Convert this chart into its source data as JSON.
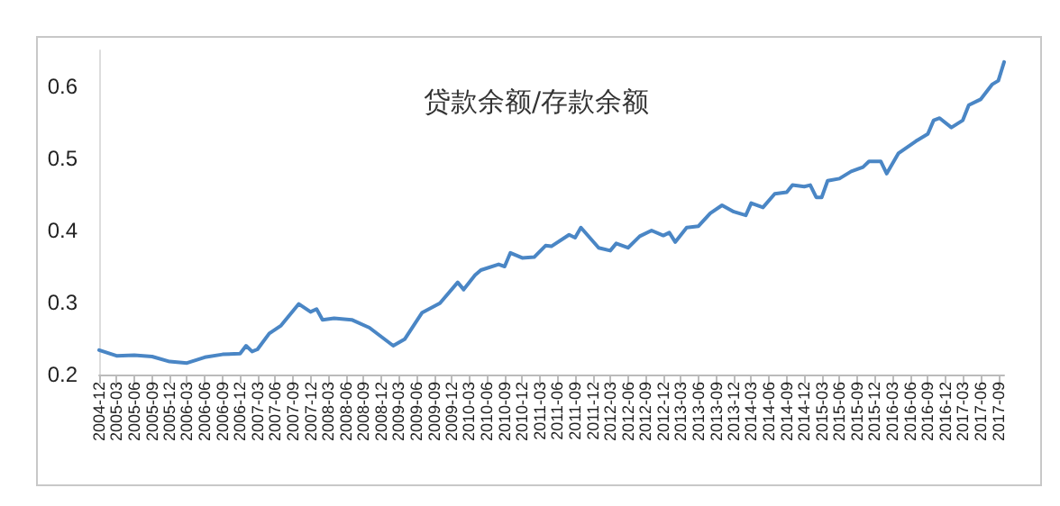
{
  "chart_data": {
    "type": "line",
    "title": "贷款余额/存款余额",
    "x": [
      "2004-12",
      "2005-03",
      "2005-06",
      "2005-09",
      "2005-12",
      "2006-03",
      "2006-06",
      "2006-09",
      "2006-12",
      "2007-01",
      "2007-02",
      "2007-03",
      "2007-05",
      "2007-07",
      "2007-10",
      "2007-12",
      "2008-01",
      "2008-02",
      "2008-04",
      "2008-07",
      "2008-10",
      "2009-02",
      "2009-04",
      "2009-07",
      "2009-10",
      "2010-01",
      "2010-02",
      "2010-04",
      "2010-05",
      "2010-08",
      "2010-09",
      "2010-10",
      "2010-12",
      "2011-02",
      "2011-04",
      "2011-05",
      "2011-08",
      "2011-09",
      "2011-10",
      "2012-01",
      "2012-03",
      "2012-04",
      "2012-06",
      "2012-08",
      "2012-10",
      "2012-12",
      "2013-01",
      "2013-02",
      "2013-04",
      "2013-06",
      "2013-08",
      "2013-10",
      "2013-12",
      "2014-02",
      "2014-03",
      "2014-05",
      "2014-07",
      "2014-09",
      "2014-10",
      "2014-12",
      "2015-01",
      "2015-02",
      "2015-03",
      "2015-04",
      "2015-06",
      "2015-08",
      "2015-10",
      "2015-11",
      "2016-01",
      "2016-02",
      "2016-04",
      "2016-07",
      "2016-09",
      "2016-10",
      "2016-11",
      "2017-01",
      "2017-03",
      "2017-04",
      "2017-06",
      "2017-08",
      "2017-09",
      "2017-10"
    ],
    "series": [
      {
        "color": "#4a86c5",
        "values": [
          0.234,
          0.226,
          0.227,
          0.225,
          0.218,
          0.216,
          0.224,
          0.228,
          0.229,
          0.24,
          0.232,
          0.235,
          0.257,
          0.268,
          0.298,
          0.287,
          0.291,
          0.276,
          0.278,
          0.276,
          0.265,
          0.24,
          0.249,
          0.286,
          0.299,
          0.328,
          0.318,
          0.338,
          0.345,
          0.353,
          0.35,
          0.369,
          0.362,
          0.363,
          0.379,
          0.378,
          0.394,
          0.39,
          0.404,
          0.376,
          0.372,
          0.382,
          0.376,
          0.392,
          0.4,
          0.393,
          0.397,
          0.384,
          0.404,
          0.406,
          0.424,
          0.435,
          0.426,
          0.421,
          0.438,
          0.432,
          0.451,
          0.453,
          0.463,
          0.461,
          0.463,
          0.446,
          0.446,
          0.469,
          0.472,
          0.482,
          0.488,
          0.496,
          0.496,
          0.479,
          0.507,
          0.524,
          0.534,
          0.553,
          0.556,
          0.543,
          0.553,
          0.574,
          0.582,
          0.603,
          0.608,
          0.634
        ]
      }
    ],
    "xlim": [
      "2004-12",
      "2017-10"
    ],
    "xticks": [
      "2004-12",
      "2005-03",
      "2005-06",
      "2005-09",
      "2005-12",
      "2006-03",
      "2006-06",
      "2006-09",
      "2006-12",
      "2007-03",
      "2007-06",
      "2007-09",
      "2007-12",
      "2008-03",
      "2008-06",
      "2008-09",
      "2008-12",
      "2009-03",
      "2009-06",
      "2009-09",
      "2009-12",
      "2010-03",
      "2010-06",
      "2010-09",
      "2010-12",
      "2011-03",
      "2011-06",
      "2011-09",
      "2011-12",
      "2012-03",
      "2012-06",
      "2012-09",
      "2012-12",
      "2013-03",
      "2013-06",
      "2013-09",
      "2013-12",
      "2014-03",
      "2014-06",
      "2014-09",
      "2014-12",
      "2015-03",
      "2015-06",
      "2015-09",
      "2015-12",
      "2016-03",
      "2016-06",
      "2016-09",
      "2016-12",
      "2017-03",
      "2017-06",
      "2017-09"
    ],
    "ylim": [
      0.2,
      0.65
    ],
    "yticks": [
      0.2,
      0.3,
      0.4,
      0.5,
      0.6
    ],
    "grid": false,
    "marker": "none",
    "line_style": "solid"
  }
}
